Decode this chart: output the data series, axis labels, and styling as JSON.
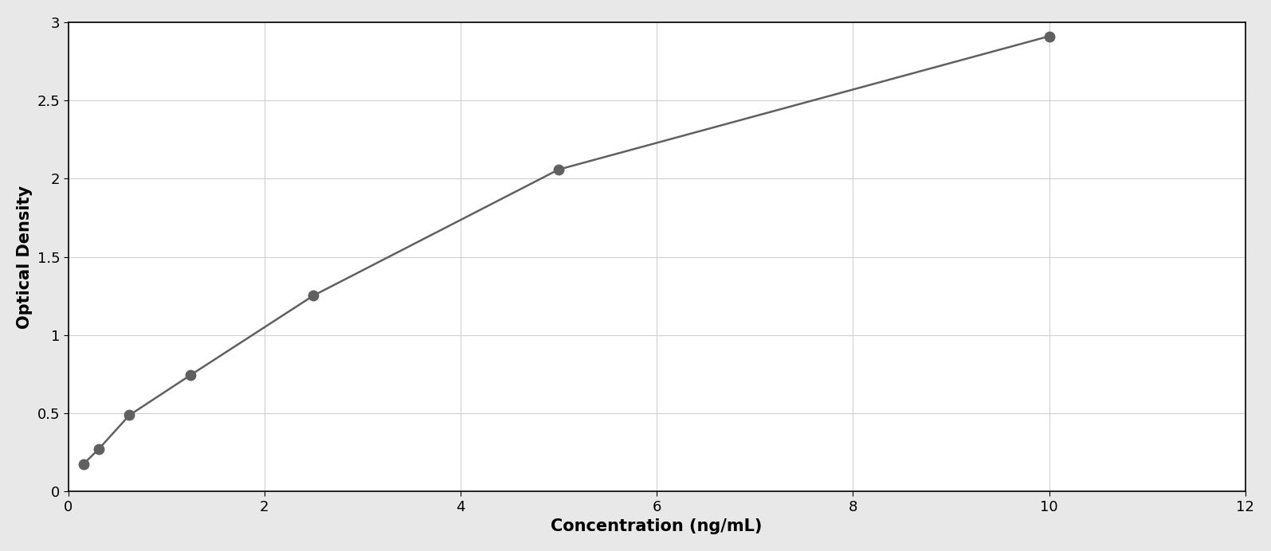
{
  "x_data": [
    0.156,
    0.313,
    0.625,
    1.25,
    2.5,
    5.0,
    10.0
  ],
  "y_data": [
    0.175,
    0.272,
    0.488,
    0.745,
    1.252,
    2.058,
    2.91
  ],
  "marker_color": "#606060",
  "line_color": "#606060",
  "marker_size": 9,
  "line_width": 1.8,
  "xlabel": "Concentration (ng/mL)",
  "ylabel": "Optical Density",
  "xlim": [
    0,
    12
  ],
  "ylim": [
    0,
    3.0
  ],
  "xticks": [
    0,
    2,
    4,
    6,
    8,
    10,
    12
  ],
  "yticks": [
    0,
    0.5,
    1.0,
    1.5,
    2.0,
    2.5,
    3.0
  ],
  "xlabel_fontsize": 15,
  "ylabel_fontsize": 15,
  "tick_fontsize": 13,
  "grid_color": "#d0d0d0",
  "background_color": "#ffffff",
  "outer_bg": "#e8e8e8",
  "border_color": "#000000"
}
